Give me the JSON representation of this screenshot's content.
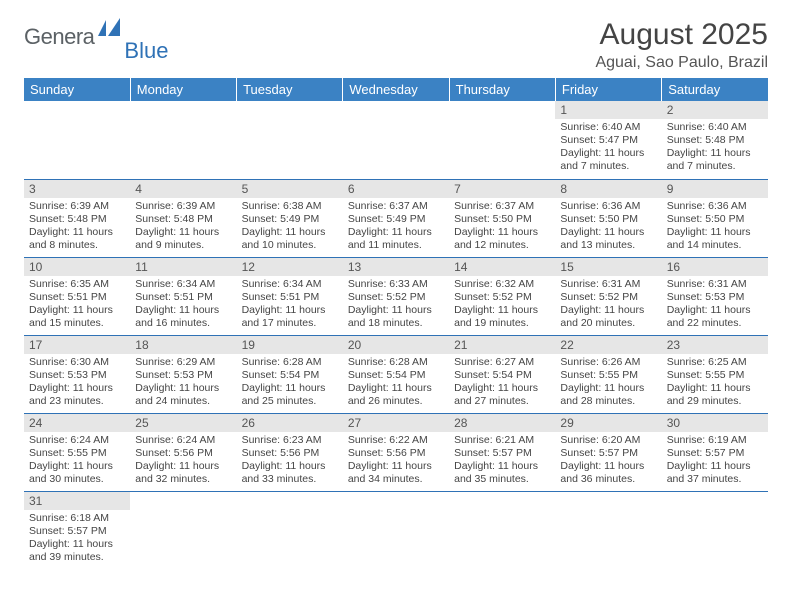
{
  "logo": {
    "text_left": "Genera",
    "text_right": "Blue"
  },
  "header": {
    "month_title": "August 2025",
    "location": "Aguai, Sao Paulo, Brazil"
  },
  "colors": {
    "header_bg": "#3b82c4",
    "header_text": "#ffffff",
    "daynum_bg": "#e6e6e6",
    "border": "#2f72b6",
    "body_text": "#454545"
  },
  "weekdays": [
    "Sunday",
    "Monday",
    "Tuesday",
    "Wednesday",
    "Thursday",
    "Friday",
    "Saturday"
  ],
  "weeks": [
    [
      {
        "empty": true
      },
      {
        "empty": true
      },
      {
        "empty": true
      },
      {
        "empty": true
      },
      {
        "empty": true
      },
      {
        "num": "1",
        "sunrise": "Sunrise: 6:40 AM",
        "sunset": "Sunset: 5:47 PM",
        "daylight": "Daylight: 11 hours and 7 minutes."
      },
      {
        "num": "2",
        "sunrise": "Sunrise: 6:40 AM",
        "sunset": "Sunset: 5:48 PM",
        "daylight": "Daylight: 11 hours and 7 minutes."
      }
    ],
    [
      {
        "num": "3",
        "sunrise": "Sunrise: 6:39 AM",
        "sunset": "Sunset: 5:48 PM",
        "daylight": "Daylight: 11 hours and 8 minutes."
      },
      {
        "num": "4",
        "sunrise": "Sunrise: 6:39 AM",
        "sunset": "Sunset: 5:48 PM",
        "daylight": "Daylight: 11 hours and 9 minutes."
      },
      {
        "num": "5",
        "sunrise": "Sunrise: 6:38 AM",
        "sunset": "Sunset: 5:49 PM",
        "daylight": "Daylight: 11 hours and 10 minutes."
      },
      {
        "num": "6",
        "sunrise": "Sunrise: 6:37 AM",
        "sunset": "Sunset: 5:49 PM",
        "daylight": "Daylight: 11 hours and 11 minutes."
      },
      {
        "num": "7",
        "sunrise": "Sunrise: 6:37 AM",
        "sunset": "Sunset: 5:50 PM",
        "daylight": "Daylight: 11 hours and 12 minutes."
      },
      {
        "num": "8",
        "sunrise": "Sunrise: 6:36 AM",
        "sunset": "Sunset: 5:50 PM",
        "daylight": "Daylight: 11 hours and 13 minutes."
      },
      {
        "num": "9",
        "sunrise": "Sunrise: 6:36 AM",
        "sunset": "Sunset: 5:50 PM",
        "daylight": "Daylight: 11 hours and 14 minutes."
      }
    ],
    [
      {
        "num": "10",
        "sunrise": "Sunrise: 6:35 AM",
        "sunset": "Sunset: 5:51 PM",
        "daylight": "Daylight: 11 hours and 15 minutes."
      },
      {
        "num": "11",
        "sunrise": "Sunrise: 6:34 AM",
        "sunset": "Sunset: 5:51 PM",
        "daylight": "Daylight: 11 hours and 16 minutes."
      },
      {
        "num": "12",
        "sunrise": "Sunrise: 6:34 AM",
        "sunset": "Sunset: 5:51 PM",
        "daylight": "Daylight: 11 hours and 17 minutes."
      },
      {
        "num": "13",
        "sunrise": "Sunrise: 6:33 AM",
        "sunset": "Sunset: 5:52 PM",
        "daylight": "Daylight: 11 hours and 18 minutes."
      },
      {
        "num": "14",
        "sunrise": "Sunrise: 6:32 AM",
        "sunset": "Sunset: 5:52 PM",
        "daylight": "Daylight: 11 hours and 19 minutes."
      },
      {
        "num": "15",
        "sunrise": "Sunrise: 6:31 AM",
        "sunset": "Sunset: 5:52 PM",
        "daylight": "Daylight: 11 hours and 20 minutes."
      },
      {
        "num": "16",
        "sunrise": "Sunrise: 6:31 AM",
        "sunset": "Sunset: 5:53 PM",
        "daylight": "Daylight: 11 hours and 22 minutes."
      }
    ],
    [
      {
        "num": "17",
        "sunrise": "Sunrise: 6:30 AM",
        "sunset": "Sunset: 5:53 PM",
        "daylight": "Daylight: 11 hours and 23 minutes."
      },
      {
        "num": "18",
        "sunrise": "Sunrise: 6:29 AM",
        "sunset": "Sunset: 5:53 PM",
        "daylight": "Daylight: 11 hours and 24 minutes."
      },
      {
        "num": "19",
        "sunrise": "Sunrise: 6:28 AM",
        "sunset": "Sunset: 5:54 PM",
        "daylight": "Daylight: 11 hours and 25 minutes."
      },
      {
        "num": "20",
        "sunrise": "Sunrise: 6:28 AM",
        "sunset": "Sunset: 5:54 PM",
        "daylight": "Daylight: 11 hours and 26 minutes."
      },
      {
        "num": "21",
        "sunrise": "Sunrise: 6:27 AM",
        "sunset": "Sunset: 5:54 PM",
        "daylight": "Daylight: 11 hours and 27 minutes."
      },
      {
        "num": "22",
        "sunrise": "Sunrise: 6:26 AM",
        "sunset": "Sunset: 5:55 PM",
        "daylight": "Daylight: 11 hours and 28 minutes."
      },
      {
        "num": "23",
        "sunrise": "Sunrise: 6:25 AM",
        "sunset": "Sunset: 5:55 PM",
        "daylight": "Daylight: 11 hours and 29 minutes."
      }
    ],
    [
      {
        "num": "24",
        "sunrise": "Sunrise: 6:24 AM",
        "sunset": "Sunset: 5:55 PM",
        "daylight": "Daylight: 11 hours and 30 minutes."
      },
      {
        "num": "25",
        "sunrise": "Sunrise: 6:24 AM",
        "sunset": "Sunset: 5:56 PM",
        "daylight": "Daylight: 11 hours and 32 minutes."
      },
      {
        "num": "26",
        "sunrise": "Sunrise: 6:23 AM",
        "sunset": "Sunset: 5:56 PM",
        "daylight": "Daylight: 11 hours and 33 minutes."
      },
      {
        "num": "27",
        "sunrise": "Sunrise: 6:22 AM",
        "sunset": "Sunset: 5:56 PM",
        "daylight": "Daylight: 11 hours and 34 minutes."
      },
      {
        "num": "28",
        "sunrise": "Sunrise: 6:21 AM",
        "sunset": "Sunset: 5:57 PM",
        "daylight": "Daylight: 11 hours and 35 minutes."
      },
      {
        "num": "29",
        "sunrise": "Sunrise: 6:20 AM",
        "sunset": "Sunset: 5:57 PM",
        "daylight": "Daylight: 11 hours and 36 minutes."
      },
      {
        "num": "30",
        "sunrise": "Sunrise: 6:19 AM",
        "sunset": "Sunset: 5:57 PM",
        "daylight": "Daylight: 11 hours and 37 minutes."
      }
    ],
    [
      {
        "num": "31",
        "sunrise": "Sunrise: 6:18 AM",
        "sunset": "Sunset: 5:57 PM",
        "daylight": "Daylight: 11 hours and 39 minutes."
      },
      {
        "empty": true
      },
      {
        "empty": true
      },
      {
        "empty": true
      },
      {
        "empty": true
      },
      {
        "empty": true
      },
      {
        "empty": true
      }
    ]
  ]
}
